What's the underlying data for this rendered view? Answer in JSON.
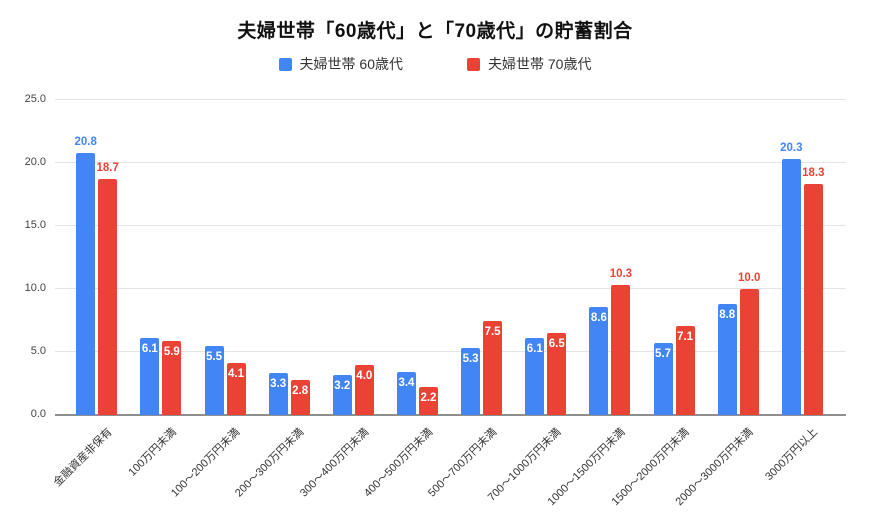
{
  "chart_data": {
    "type": "bar",
    "title": "夫婦世帯「60歳代」と「70歳代」の貯蓄割合",
    "categories": [
      "金融資産非保有",
      "100万円未満",
      "100〜200万円未満",
      "200〜300万円未満",
      "300〜400万円未満",
      "400〜500万円未満",
      "500〜700万円未満",
      "700〜1000万円未満",
      "1000〜1500万円未満",
      "1500〜2000万円未満",
      "2000〜3000万円未満",
      "3000万円以上"
    ],
    "series": [
      {
        "name": "夫婦世帯 60歳代",
        "color": "#4285F4",
        "values": [
          20.8,
          6.1,
          5.5,
          3.3,
          3.2,
          3.4,
          5.3,
          6.1,
          8.6,
          5.7,
          8.8,
          20.3
        ]
      },
      {
        "name": "夫婦世帯 70歳代",
        "color": "#EA4335",
        "values": [
          18.7,
          5.9,
          4.1,
          2.8,
          4.0,
          2.2,
          7.5,
          6.5,
          10.3,
          7.1,
          10.0,
          18.3
        ]
      }
    ],
    "y_ticks": [
      0.0,
      5.0,
      10.0,
      15.0,
      20.0,
      25.0
    ],
    "ylim": [
      0,
      25
    ],
    "grid": true,
    "legend_position": "top",
    "value_label_decimals": 1,
    "label_outside_threshold": 10,
    "colors": {
      "background": "#ffffff",
      "gridline": "#e4e4e4",
      "baseline": "#8f8f8f",
      "axis_text": "#444444",
      "category_text": "#333333",
      "title_text": "#111111"
    }
  }
}
